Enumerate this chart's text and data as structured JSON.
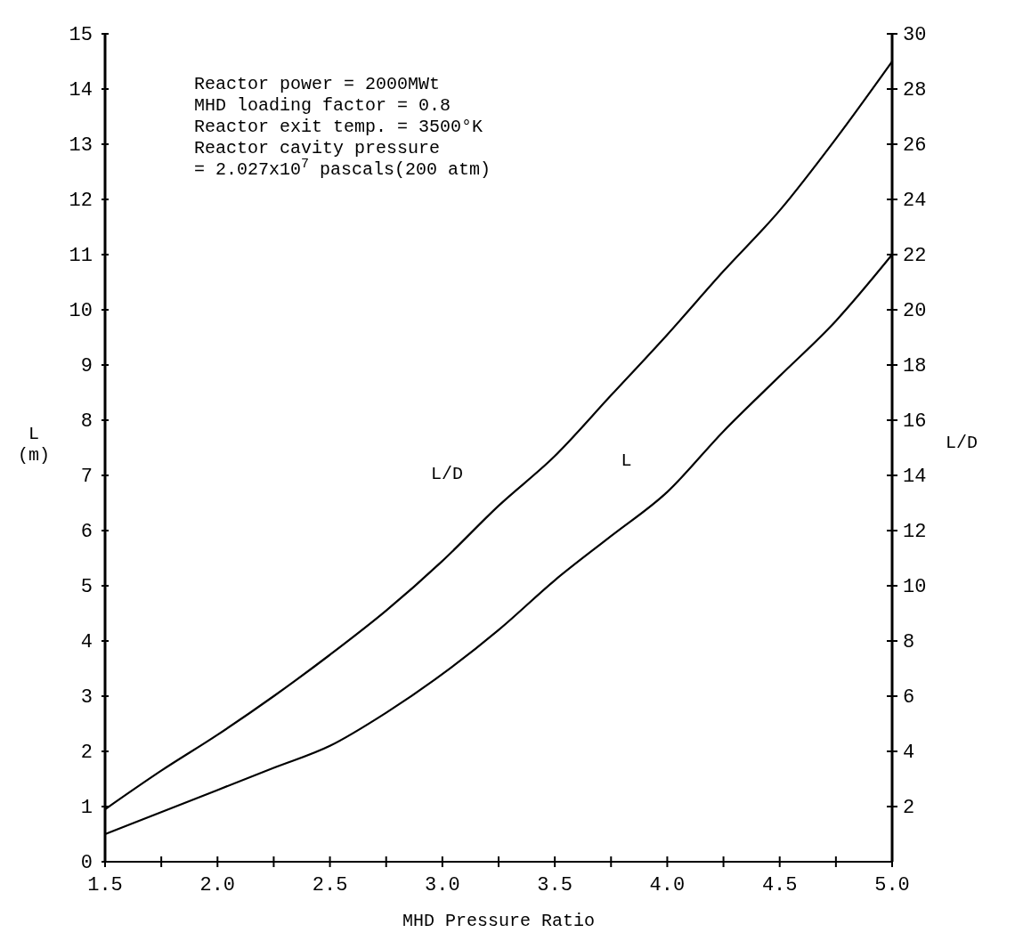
{
  "chart_data": {
    "type": "line",
    "xlabel": "MHD Pressure Ratio",
    "ylabel": "L (m)",
    "y2label": "L/D",
    "x": [
      1.5,
      1.75,
      2.0,
      2.25,
      2.5,
      2.75,
      3.0,
      3.25,
      3.5,
      3.75,
      4.0,
      4.25,
      4.5,
      4.75,
      5.0
    ],
    "series": [
      {
        "name": "L/D",
        "color": "#000000",
        "axis": "y2",
        "values": [
          1.9,
          3.3,
          4.6,
          6.0,
          7.5,
          9.1,
          10.9,
          12.9,
          14.7,
          16.9,
          19.1,
          21.4,
          23.6,
          26.2,
          29.0
        ]
      },
      {
        "name": "L",
        "color": "#000000",
        "axis": "y",
        "values": [
          0.5,
          0.9,
          1.3,
          1.7,
          2.1,
          2.7,
          3.4,
          4.2,
          5.1,
          5.9,
          6.7,
          7.8,
          8.8,
          9.8,
          11.0
        ]
      }
    ],
    "xlim": [
      1.5,
      5.0
    ],
    "xticks": [
      {
        "value": 1.5,
        "label": "1.5"
      },
      {
        "value": 1.75,
        "label": null
      },
      {
        "value": 2,
        "label": "2.0"
      },
      {
        "value": 2.25,
        "label": null
      },
      {
        "value": 2.5,
        "label": "2.5"
      },
      {
        "value": 2.75,
        "label": null
      },
      {
        "value": 3,
        "label": "3.0"
      },
      {
        "value": 3.25,
        "label": null
      },
      {
        "value": 3.5,
        "label": "3.5"
      },
      {
        "value": 3.75,
        "label": null
      },
      {
        "value": 4,
        "label": "4.0"
      },
      {
        "value": 4.25,
        "label": null
      },
      {
        "value": 4.5,
        "label": "4.5"
      },
      {
        "value": 4.75,
        "label": null
      },
      {
        "value": 5,
        "label": "5.0"
      }
    ],
    "ylim": [
      0,
      15
    ],
    "yticks": [
      0,
      1,
      2,
      3,
      4,
      5,
      6,
      7,
      8,
      9,
      10,
      11,
      12,
      13,
      14,
      15
    ],
    "y2lim": [
      0,
      30
    ],
    "y2ticks": [
      2,
      4,
      6,
      8,
      10,
      12,
      14,
      16,
      18,
      20,
      22,
      24,
      26,
      28,
      30
    ],
    "annotations": [
      "Reactor power = 2000MWt",
      "MHD loading factor = 0.8",
      "Reactor exit temp. = 3500°K",
      "Reactor cavity pressure",
      "= 2.027x10$^{7}$ pascals(200 atm)"
    ],
    "grid": false,
    "legend": false,
    "marker": "none",
    "line_style": "solid"
  }
}
